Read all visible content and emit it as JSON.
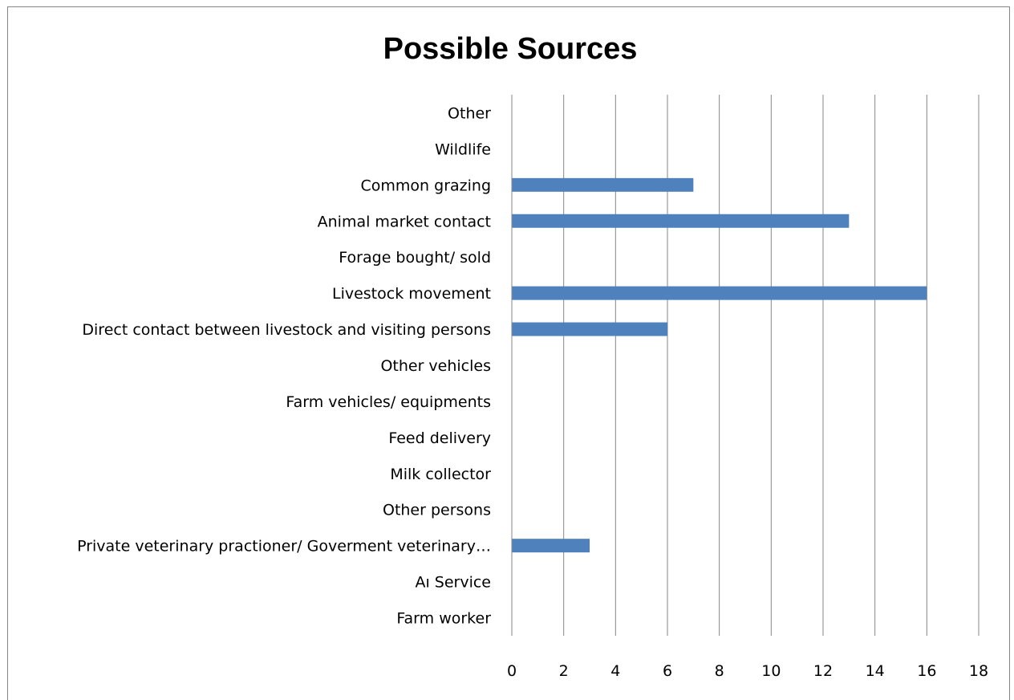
{
  "chart_data": {
    "type": "bar",
    "orientation": "horizontal",
    "title": "Possible Sources",
    "xlabel": "",
    "ylabel": "",
    "categories": [
      "Other",
      "Wildlife",
      "Common grazing",
      "Animal market contact",
      "Forage bought/ sold",
      "Livestock movement",
      "Direct contact between livestock and visiting persons",
      "Other vehicles",
      "Farm vehicles/ equipments",
      "Feed delivery",
      "Milk collector",
      "Other persons",
      "Private veterinary practioner/ Goverment veterinary…",
      "Aı Service",
      "Farm worker"
    ],
    "values": [
      0,
      0,
      7,
      13,
      0,
      16,
      6,
      0,
      0,
      0,
      0,
      0,
      3,
      0,
      0
    ],
    "xlim": [
      0,
      18
    ],
    "xticks": [
      "0",
      "2",
      "4",
      "6",
      "8",
      "10",
      "12",
      "14",
      "16",
      "18"
    ],
    "grid": "vertical",
    "legend": "none",
    "bar_color": "#4f81bd",
    "grid_color": "#868686"
  }
}
